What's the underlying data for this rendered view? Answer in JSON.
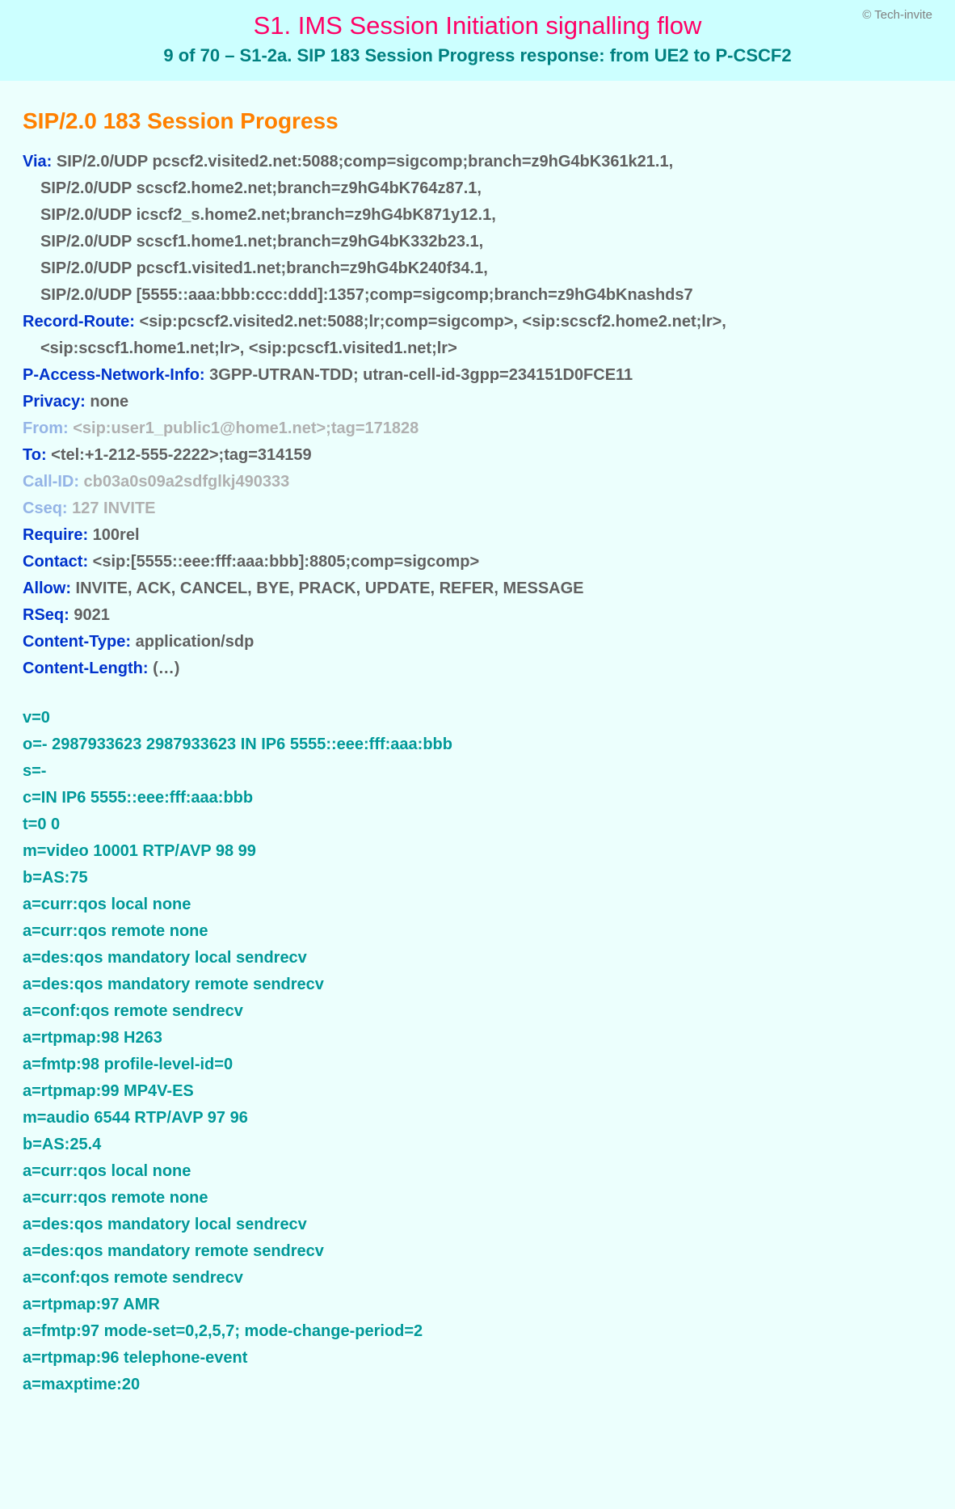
{
  "banner": {
    "copyright": "© Tech-invite",
    "title": "S1. IMS Session Initiation signalling flow",
    "subtitle": "9 of 70 – S1-2a. SIP 183 Session Progress response: from UE2 to P-CSCF2"
  },
  "message": {
    "title": "SIP/2.0 183 Session Progress",
    "headers": [
      {
        "name": "Via:",
        "value": " SIP/2.0/UDP pcscf2.visited2.net:5088;comp=sigcomp;branch=z9hG4bK361k21.1,",
        "faded": false
      },
      {
        "name": "",
        "value": "SIP/2.0/UDP scscf2.home2.net;branch=z9hG4bK764z87.1,",
        "indent": true,
        "faded": false
      },
      {
        "name": "",
        "value": "SIP/2.0/UDP icscf2_s.home2.net;branch=z9hG4bK871y12.1,",
        "indent": true,
        "faded": false
      },
      {
        "name": "",
        "value": "SIP/2.0/UDP scscf1.home1.net;branch=z9hG4bK332b23.1,",
        "indent": true,
        "faded": false
      },
      {
        "name": "",
        "value": "SIP/2.0/UDP pcscf1.visited1.net;branch=z9hG4bK240f34.1,",
        "indent": true,
        "faded": false
      },
      {
        "name": "",
        "value": "SIP/2.0/UDP [5555::aaa:bbb:ccc:ddd]:1357;comp=sigcomp;branch=z9hG4bKnashds7",
        "indent": true,
        "faded": false
      },
      {
        "name": "Record-Route:",
        "value": " <sip:pcscf2.visited2.net:5088;lr;comp=sigcomp>, <sip:scscf2.home2.net;lr>,",
        "faded": false
      },
      {
        "name": "",
        "value": "<sip:scscf1.home1.net;lr>, <sip:pcscf1.visited1.net;lr>",
        "indent": true,
        "faded": false
      },
      {
        "name": "P-Access-Network-Info:",
        "value": " 3GPP-UTRAN-TDD; utran-cell-id-3gpp=234151D0FCE11",
        "faded": false
      },
      {
        "name": "Privacy:",
        "value": " none",
        "faded": false
      },
      {
        "name": "From:",
        "value": " <sip:user1_public1@home1.net>;tag=171828",
        "faded": true
      },
      {
        "name": "To:",
        "value": " <tel:+1-212-555-2222>;tag=314159",
        "faded": false
      },
      {
        "name": "Call-ID:",
        "value": " cb03a0s09a2sdfglkj490333",
        "faded": true
      },
      {
        "name": "Cseq:",
        "value": " 127 INVITE",
        "faded": true
      },
      {
        "name": "Require:",
        "value": " 100rel",
        "faded": false
      },
      {
        "name": "Contact:",
        "value": " <sip:[5555::eee:fff:aaa:bbb]:8805;comp=sigcomp>",
        "faded": false
      },
      {
        "name": "Allow:",
        "value": " INVITE, ACK, CANCEL, BYE, PRACK, UPDATE, REFER, MESSAGE",
        "faded": false
      },
      {
        "name": "RSeq:",
        "value": " 9021",
        "faded": false
      },
      {
        "name": "Content-Type:",
        "value": " application/sdp",
        "faded": false
      },
      {
        "name": "Content-Length:",
        "value": " (…)",
        "faded": false
      }
    ],
    "sdp": [
      "v=0",
      "o=- 2987933623 2987933623 IN IP6 5555::eee:fff:aaa:bbb",
      "s=-",
      "c=IN IP6 5555::eee:fff:aaa:bbb",
      "t=0 0",
      "m=video 10001 RTP/AVP 98 99",
      "b=AS:75",
      "a=curr:qos local none",
      "a=curr:qos remote none",
      "a=des:qos mandatory local sendrecv",
      "a=des:qos mandatory remote sendrecv",
      "a=conf:qos remote sendrecv",
      "a=rtpmap:98 H263",
      "a=fmtp:98 profile-level-id=0",
      "a=rtpmap:99 MP4V-ES",
      "m=audio 6544 RTP/AVP 97 96",
      "b=AS:25.4",
      "a=curr:qos local none",
      "a=curr:qos remote none",
      "a=des:qos mandatory local sendrecv",
      "a=des:qos mandatory remote sendrecv",
      "a=conf:qos remote sendrecv",
      "a=rtpmap:97 AMR",
      "a=fmtp:97 mode-set=0,2,5,7; mode-change-period=2",
      "a=rtpmap:96 telephone-event",
      "a=maxptime:20"
    ]
  },
  "style": {
    "banner_bg": "#ccffff",
    "body_bg": "#ecfffd",
    "title_color": "#ff0066",
    "subtitle_color": "#008080",
    "msg_title_color": "#ff8000",
    "header_name_color": "#0033cc",
    "header_value_color": "#606060",
    "faded_name_color": "#94b4e6",
    "faded_value_color": "#b0b0b0",
    "sdp_color": "#009999"
  }
}
